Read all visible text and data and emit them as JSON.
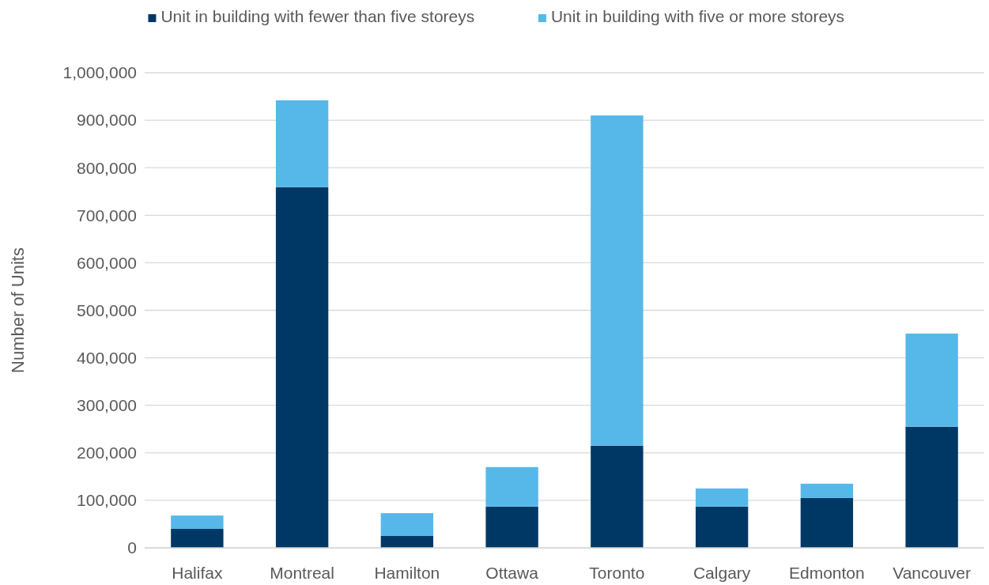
{
  "chart_data": {
    "type": "bar",
    "stacked": true,
    "ylabel": "Number of Units",
    "categories": [
      "Halifax",
      "Montreal",
      "Hamilton",
      "Ottawa",
      "Toronto",
      "Calgary",
      "Edmonton",
      "Vancouver"
    ],
    "series": [
      {
        "name": "Unit in building with fewer than five storeys",
        "color": "#003865",
        "values": [
          40000,
          759000,
          25000,
          87000,
          215000,
          87000,
          105000,
          255000
        ]
      },
      {
        "name": "Unit in building with five or more storeys",
        "color": "#56b8e9",
        "values": [
          28000,
          183000,
          48000,
          83000,
          695000,
          38000,
          30000,
          196000
        ]
      }
    ],
    "ylim": [
      0,
      1000000
    ],
    "yticks": [
      {
        "value": 0,
        "label": "0"
      },
      {
        "value": 100000,
        "label": "100,000"
      },
      {
        "value": 200000,
        "label": "200,000"
      },
      {
        "value": 300000,
        "label": "300,000"
      },
      {
        "value": 400000,
        "label": "400,000"
      },
      {
        "value": 500000,
        "label": "500,000"
      },
      {
        "value": 600000,
        "label": "600,000"
      },
      {
        "value": 700000,
        "label": "700,000"
      },
      {
        "value": 800000,
        "label": "800,000"
      },
      {
        "value": 900000,
        "label": "900,000"
      },
      {
        "value": 1000000,
        "label": "1,000,000"
      }
    ],
    "grid": "y",
    "legend": "top"
  }
}
